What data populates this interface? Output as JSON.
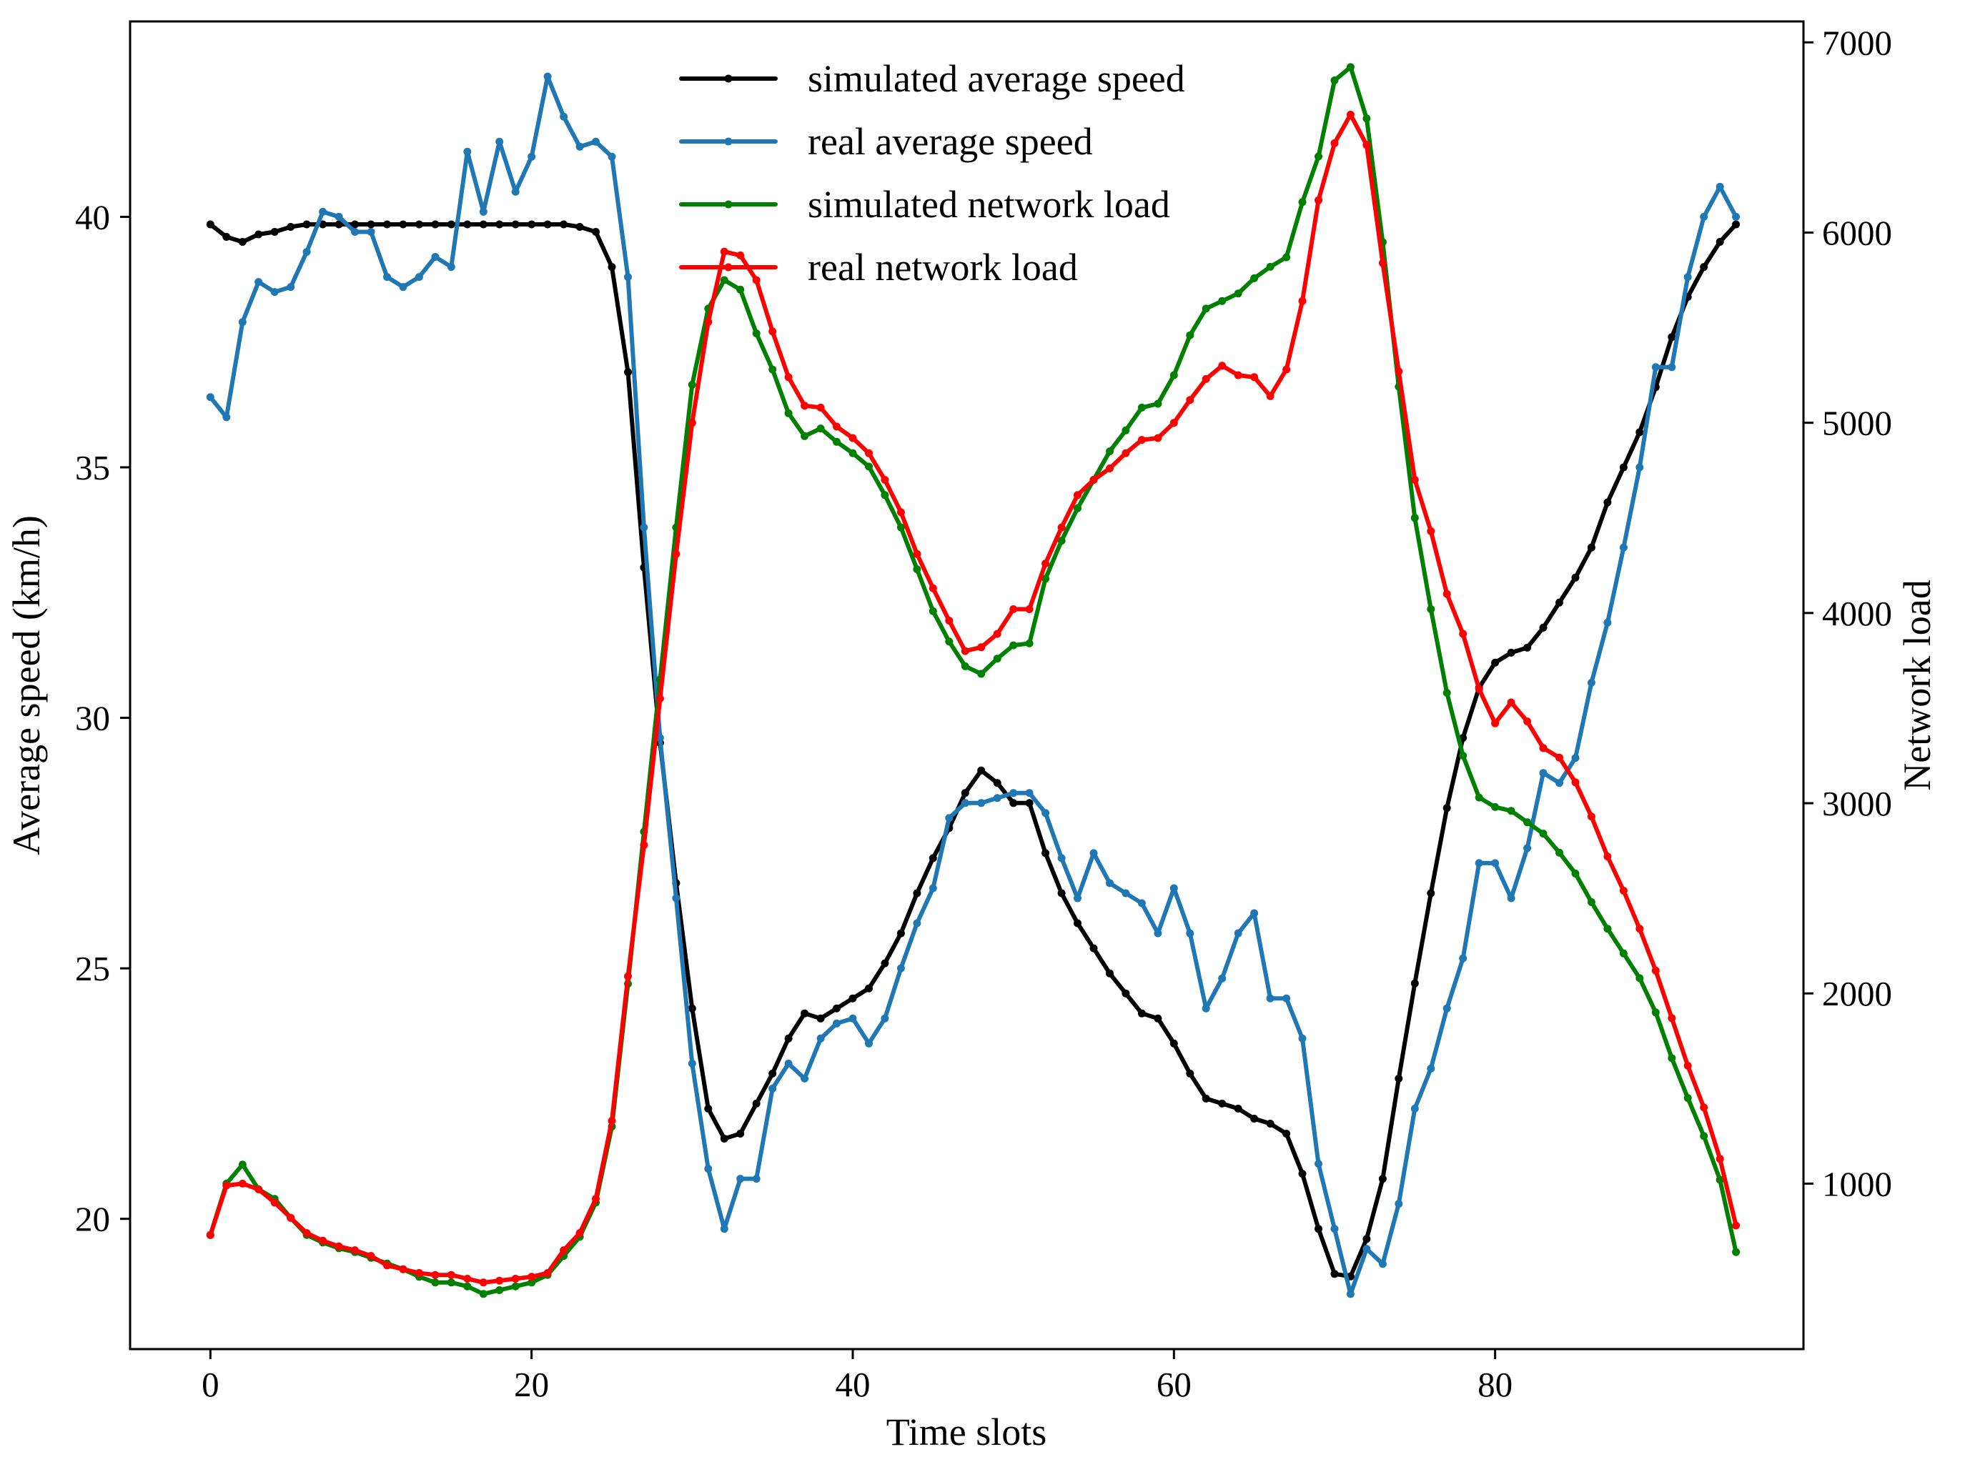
{
  "chart_data": {
    "type": "line",
    "title": "",
    "xlabel": "Time slots",
    "ylabel_left": "Average speed (km/h)",
    "ylabel_right": "Network load",
    "xlim": [
      -5,
      99.2
    ],
    "ylim_left": [
      17.4,
      43.9
    ],
    "ylim_right": [
      130,
      7110
    ],
    "x_ticks": [
      0,
      20,
      40,
      60,
      80
    ],
    "y_left_ticks": [
      20,
      25,
      30,
      35,
      40
    ],
    "y_right_ticks": [
      1000,
      2000,
      3000,
      4000,
      5000,
      6000,
      7000
    ],
    "grid": false,
    "legend_position": "top-center",
    "series": [
      {
        "name": "simulated average speed",
        "axis": "left",
        "color": "#000000",
        "values": [
          39.85,
          39.6,
          39.5,
          39.65,
          39.7,
          39.8,
          39.85,
          39.85,
          39.85,
          39.85,
          39.85,
          39.85,
          39.85,
          39.85,
          39.85,
          39.85,
          39.85,
          39.85,
          39.85,
          39.85,
          39.85,
          39.85,
          39.85,
          39.8,
          39.7,
          39.0,
          36.9,
          33.0,
          29.5,
          26.7,
          24.2,
          22.2,
          21.6,
          21.7,
          22.3,
          22.9,
          23.6,
          24.1,
          24.0,
          24.2,
          24.4,
          24.6,
          25.1,
          25.7,
          26.5,
          27.2,
          27.8,
          28.5,
          28.95,
          28.7,
          28.3,
          28.3,
          27.3,
          26.5,
          25.9,
          25.4,
          24.9,
          24.5,
          24.1,
          24.0,
          23.5,
          22.9,
          22.4,
          22.3,
          22.2,
          22.0,
          21.9,
          21.7,
          20.9,
          19.8,
          18.9,
          18.85,
          19.6,
          20.8,
          22.8,
          24.7,
          26.5,
          28.2,
          29.6,
          30.6,
          31.1,
          31.3,
          31.4,
          31.8,
          32.3,
          32.8,
          33.4,
          34.3,
          35.0,
          35.7,
          36.6,
          37.6,
          38.4,
          39.0,
          39.5,
          39.85
        ]
      },
      {
        "name": "real average speed",
        "axis": "left",
        "color": "#1f77b4",
        "values": [
          36.4,
          36.0,
          37.9,
          38.7,
          38.5,
          38.6,
          39.3,
          40.1,
          40.0,
          39.7,
          39.7,
          38.8,
          38.6,
          38.8,
          39.2,
          39.0,
          41.3,
          40.1,
          41.5,
          40.5,
          41.2,
          42.8,
          42.0,
          41.4,
          41.5,
          41.2,
          38.8,
          33.8,
          29.6,
          26.4,
          23.1,
          21.0,
          19.8,
          20.8,
          20.8,
          22.6,
          23.1,
          22.8,
          23.6,
          23.9,
          24.0,
          23.5,
          24.0,
          25.0,
          25.9,
          26.6,
          28.0,
          28.3,
          28.3,
          28.4,
          28.5,
          28.5,
          28.1,
          27.2,
          26.4,
          27.3,
          26.7,
          26.5,
          26.3,
          25.7,
          26.6,
          25.7,
          24.2,
          24.8,
          25.7,
          26.1,
          24.4,
          24.4,
          23.6,
          21.1,
          19.8,
          18.5,
          19.4,
          19.1,
          20.3,
          22.2,
          23.0,
          24.2,
          25.2,
          27.1,
          27.1,
          26.4,
          27.4,
          28.9,
          28.7,
          29.2,
          30.7,
          31.9,
          33.4,
          35.0,
          37.0,
          37.0,
          38.8,
          40.0,
          40.6,
          40.0
        ]
      },
      {
        "name": "simulated network load",
        "axis": "right",
        "color": "#008000",
        "values": [
          730,
          1000,
          1100,
          970,
          920,
          820,
          730,
          690,
          660,
          640,
          610,
          580,
          550,
          510,
          480,
          480,
          460,
          420,
          440,
          460,
          480,
          520,
          620,
          720,
          900,
          1300,
          2050,
          2850,
          3650,
          4450,
          5200,
          5600,
          5750,
          5700,
          5470,
          5280,
          5050,
          4930,
          4970,
          4900,
          4840,
          4770,
          4620,
          4450,
          4230,
          4010,
          3850,
          3720,
          3680,
          3760,
          3830,
          3840,
          4180,
          4380,
          4550,
          4700,
          4850,
          4960,
          5080,
          5100,
          5250,
          5460,
          5600,
          5640,
          5680,
          5760,
          5820,
          5870,
          6160,
          6400,
          6800,
          6870,
          6600,
          5950,
          5190,
          4500,
          4020,
          3580,
          3250,
          3030,
          2980,
          2960,
          2900,
          2840,
          2740,
          2630,
          2480,
          2340,
          2210,
          2080,
          1900,
          1660,
          1450,
          1250,
          1020,
          640
        ]
      },
      {
        "name": "real network load",
        "axis": "right",
        "color": "#ff0000",
        "values": [
          730,
          990,
          1000,
          970,
          900,
          820,
          740,
          700,
          670,
          650,
          620,
          570,
          550,
          530,
          520,
          520,
          500,
          480,
          490,
          500,
          510,
          530,
          650,
          740,
          920,
          1330,
          2090,
          2780,
          3550,
          4310,
          5000,
          5530,
          5900,
          5880,
          5750,
          5480,
          5240,
          5090,
          5080,
          4980,
          4920,
          4840,
          4700,
          4530,
          4310,
          4130,
          3960,
          3800,
          3820,
          3890,
          4020,
          4020,
          4260,
          4450,
          4620,
          4700,
          4760,
          4840,
          4910,
          4920,
          5000,
          5120,
          5230,
          5300,
          5250,
          5240,
          5140,
          5280,
          5640,
          6170,
          6470,
          6620,
          6460,
          5840,
          5270,
          4700,
          4430,
          4100,
          3890,
          3600,
          3420,
          3530,
          3430,
          3290,
          3240,
          3110,
          2930,
          2720,
          2540,
          2340,
          2120,
          1870,
          1620,
          1400,
          1130,
          780
        ]
      }
    ]
  }
}
